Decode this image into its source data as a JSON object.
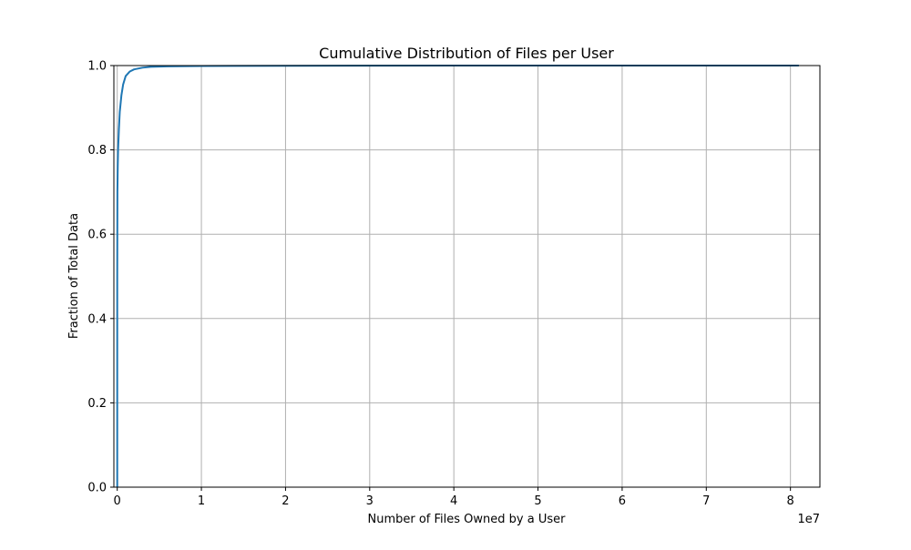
{
  "chart_data": {
    "type": "line",
    "title": "Cumulative Distribution of Files per User",
    "xlabel": "Number of Files Owned by a User",
    "ylabel": "Fraction of Total Data",
    "x_offset_label": "1e7",
    "xlim": [
      -400000,
      83500000
    ],
    "ylim": [
      0,
      1
    ],
    "x_ticks": [
      0,
      10000000,
      20000000,
      30000000,
      40000000,
      50000000,
      60000000,
      70000000,
      80000000
    ],
    "x_tick_labels": [
      "0",
      "1",
      "2",
      "3",
      "4",
      "5",
      "6",
      "7",
      "8"
    ],
    "y_ticks": [
      0,
      0.2,
      0.4,
      0.6,
      0.8,
      1.0
    ],
    "y_tick_labels": [
      "0.0",
      "0.2",
      "0.4",
      "0.6",
      "0.8",
      "1.0"
    ],
    "grid": true,
    "legend": "none",
    "series": [
      {
        "color": "#1f77b4",
        "x": [
          0,
          0,
          20000,
          60000,
          100000,
          200000,
          300000,
          500000,
          700000,
          1000000,
          1500000,
          2000000,
          3000000,
          4000000,
          6000000,
          10000000,
          20000000,
          40000000,
          81000000
        ],
        "y": [
          0,
          0.5,
          0.7,
          0.76,
          0.8,
          0.85,
          0.89,
          0.93,
          0.955,
          0.975,
          0.986,
          0.991,
          0.995,
          0.997,
          0.998,
          0.999,
          0.9995,
          0.9999,
          1.0
        ]
      }
    ]
  }
}
